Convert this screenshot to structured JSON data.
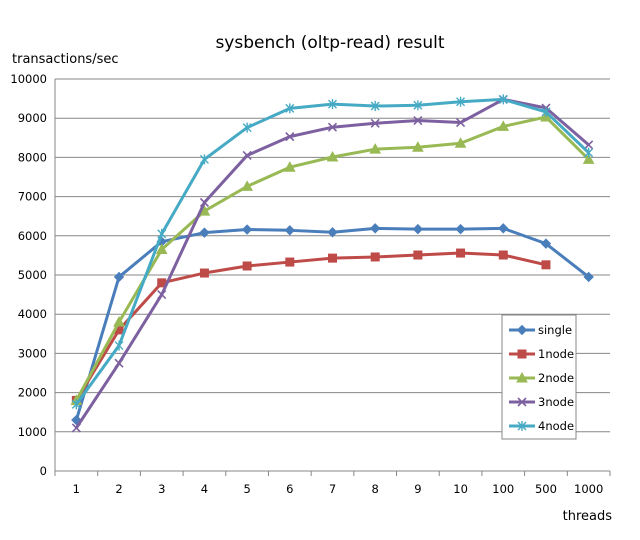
{
  "chart_data": {
    "type": "line",
    "title": "sysbench (oltp-read)  result",
    "ylabel": "transactions/sec",
    "xlabel": "threads",
    "categories": [
      "1",
      "2",
      "3",
      "4",
      "5",
      "6",
      "7",
      "8",
      "9",
      "10",
      "100",
      "500",
      "1000"
    ],
    "ylim": [
      0,
      10000
    ],
    "yticks": [
      0,
      1000,
      2000,
      3000,
      4000,
      5000,
      6000,
      7000,
      8000,
      9000,
      10000
    ],
    "grid": "horizontal",
    "legend_position": "right",
    "series": [
      {
        "name": "single",
        "color": "#4A7EBB",
        "marker": "diamond",
        "values": [
          1300,
          4950,
          5850,
          6080,
          6160,
          6140,
          6090,
          6190,
          6170,
          6170,
          6190,
          5800,
          4950
        ]
      },
      {
        "name": "1node",
        "color": "#BE4B48",
        "marker": "square",
        "values": [
          1800,
          3600,
          4800,
          5050,
          5230,
          5330,
          5430,
          5460,
          5510,
          5560,
          5510,
          5260,
          null
        ]
      },
      {
        "name": "2node",
        "color": "#98B954",
        "marker": "triangle",
        "values": [
          1800,
          3800,
          5650,
          6630,
          7260,
          7750,
          8010,
          8210,
          8260,
          8360,
          8790,
          9030,
          7950
        ]
      },
      {
        "name": "3node",
        "color": "#7D60A0",
        "marker": "x",
        "values": [
          1100,
          2750,
          4500,
          6850,
          8050,
          8530,
          8770,
          8870,
          8940,
          8890,
          9480,
          9260,
          8320
        ]
      },
      {
        "name": "4node",
        "color": "#46AAC5",
        "marker": "star",
        "values": [
          1700,
          3200,
          6050,
          7950,
          8760,
          9250,
          9360,
          9310,
          9330,
          9420,
          9480,
          9160,
          8120
        ]
      }
    ]
  }
}
